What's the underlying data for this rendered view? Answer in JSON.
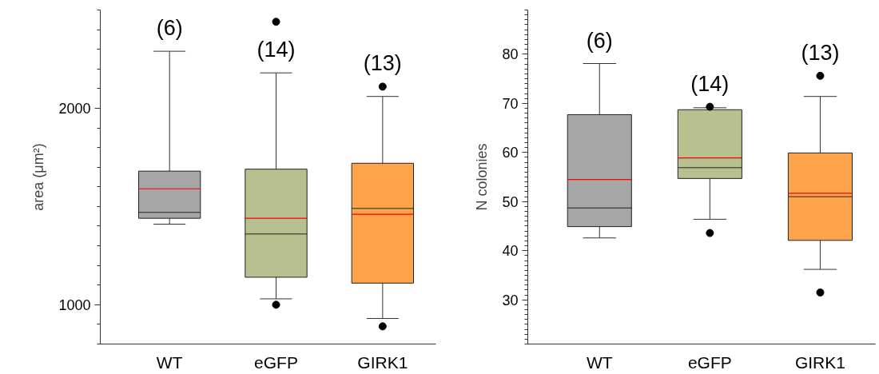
{
  "chart_data": [
    {
      "type": "box",
      "ylabel": "area (μm²)",
      "categories": [
        "WT",
        "eGFP",
        "GIRK1"
      ],
      "ylim": [
        800,
        2500
      ],
      "yticks": [
        {
          "value": 800,
          "label": null
        },
        {
          "value": 900,
          "label": null
        },
        1000,
        {
          "value": 1100,
          "label": null
        },
        {
          "value": 1200,
          "label": null
        },
        {
          "value": 1300,
          "label": null
        },
        {
          "value": 1400,
          "label": null
        },
        {
          "value": 1500,
          "label": null
        },
        {
          "value": 1600,
          "label": null
        },
        {
          "value": 1700,
          "label": null
        },
        {
          "value": 1800,
          "label": null
        },
        {
          "value": 1900,
          "label": null
        },
        2000,
        {
          "value": 2100,
          "label": null
        },
        {
          "value": 2200,
          "label": null
        },
        {
          "value": 2300,
          "label": null
        },
        {
          "value": 2400,
          "label": null
        },
        {
          "value": 2500,
          "label": null
        }
      ],
      "colors": [
        "#a6a6a6",
        "#b7c08e",
        "#fda44b"
      ],
      "grid": false,
      "boxes": [
        {
          "low": 1410,
          "q1": 1440,
          "median": 1470,
          "q3": 1680,
          "high": 2290,
          "mean": 1590
        },
        {
          "low": 1030,
          "q1": 1140,
          "median": 1360,
          "q3": 1690,
          "high": 2180,
          "mean": 1440,
          "outliers": [
            2440,
            1000
          ]
        },
        {
          "low": 930,
          "q1": 1110,
          "median": 1490,
          "q3": 1720,
          "high": 2060,
          "mean": 1460,
          "outliers": [
            2110,
            890
          ]
        }
      ],
      "annotations": [
        "(6)",
        "(14)",
        "(13)"
      ]
    },
    {
      "type": "box",
      "ylabel": "N colonies",
      "categories": [
        "WT",
        "eGFP",
        "GIRK1"
      ],
      "ylim": [
        21,
        89
      ],
      "yticks": [
        {
          "value": 21,
          "label": null
        },
        {
          "value": 22,
          "label": null
        },
        {
          "value": 23,
          "label": null
        },
        {
          "value": 24,
          "label": null
        },
        {
          "value": 25,
          "label": null
        },
        {
          "value": 26,
          "label": null
        },
        {
          "value": 27,
          "label": null
        },
        {
          "value": 28,
          "label": null
        },
        {
          "value": 29,
          "label": null
        },
        30,
        {
          "value": 31,
          "label": null
        },
        {
          "value": 32,
          "label": null
        },
        {
          "value": 33,
          "label": null
        },
        {
          "value": 34,
          "label": null
        },
        {
          "value": 35,
          "label": null
        },
        {
          "value": 36,
          "label": null
        },
        {
          "value": 37,
          "label": null
        },
        {
          "value": 38,
          "label": null
        },
        {
          "value": 39,
          "label": null
        },
        40,
        {
          "value": 41,
          "label": null
        },
        {
          "value": 42,
          "label": null
        },
        {
          "value": 43,
          "label": null
        },
        {
          "value": 44,
          "label": null
        },
        {
          "value": 45,
          "label": null
        },
        {
          "value": 46,
          "label": null
        },
        {
          "value": 47,
          "label": null
        },
        {
          "value": 48,
          "label": null
        },
        {
          "value": 49,
          "label": null
        },
        50,
        {
          "value": 51,
          "label": null
        },
        {
          "value": 52,
          "label": null
        },
        {
          "value": 53,
          "label": null
        },
        {
          "value": 54,
          "label": null
        },
        {
          "value": 55,
          "label": null
        },
        {
          "value": 56,
          "label": null
        },
        {
          "value": 57,
          "label": null
        },
        {
          "value": 58,
          "label": null
        },
        {
          "value": 59,
          "label": null
        },
        60,
        {
          "value": 61,
          "label": null
        },
        {
          "value": 62,
          "label": null
        },
        {
          "value": 63,
          "label": null
        },
        {
          "value": 64,
          "label": null
        },
        {
          "value": 65,
          "label": null
        },
        {
          "value": 66,
          "label": null
        },
        {
          "value": 67,
          "label": null
        },
        {
          "value": 68,
          "label": null
        },
        {
          "value": 69,
          "label": null
        },
        70,
        {
          "value": 71,
          "label": null
        },
        {
          "value": 72,
          "label": null
        },
        {
          "value": 73,
          "label": null
        },
        {
          "value": 74,
          "label": null
        },
        {
          "value": 75,
          "label": null
        },
        {
          "value": 76,
          "label": null
        },
        {
          "value": 77,
          "label": null
        },
        {
          "value": 78,
          "label": null
        },
        {
          "value": 79,
          "label": null
        },
        80,
        {
          "value": 81,
          "label": null
        },
        {
          "value": 82,
          "label": null
        },
        {
          "value": 83,
          "label": null
        },
        {
          "value": 84,
          "label": null
        },
        {
          "value": 85,
          "label": null
        },
        {
          "value": 86,
          "label": null
        },
        {
          "value": 87,
          "label": null
        },
        {
          "value": 88,
          "label": null
        },
        {
          "value": 89,
          "label": null
        }
      ],
      "colors": [
        "#a6a6a6",
        "#b7c08e",
        "#fda44b"
      ],
      "grid": false,
      "boxes": [
        {
          "low": 42.6,
          "q1": 44.9,
          "median": 48.7,
          "q3": 67.7,
          "high": 78.1,
          "mean": 54.5
        },
        {
          "low": 46.4,
          "q1": 54.7,
          "median": 56.9,
          "q3": 68.7,
          "high": 69.1,
          "mean": 58.9,
          "outliers": [
            69.3,
            43.6
          ]
        },
        {
          "low": 36.2,
          "q1": 42.1,
          "median": 51.0,
          "q3": 59.9,
          "high": 71.4,
          "mean": 51.7,
          "outliers": [
            75.6,
            31.5
          ]
        }
      ],
      "annotations": [
        "(6)",
        "(14)",
        "(13)"
      ]
    }
  ]
}
